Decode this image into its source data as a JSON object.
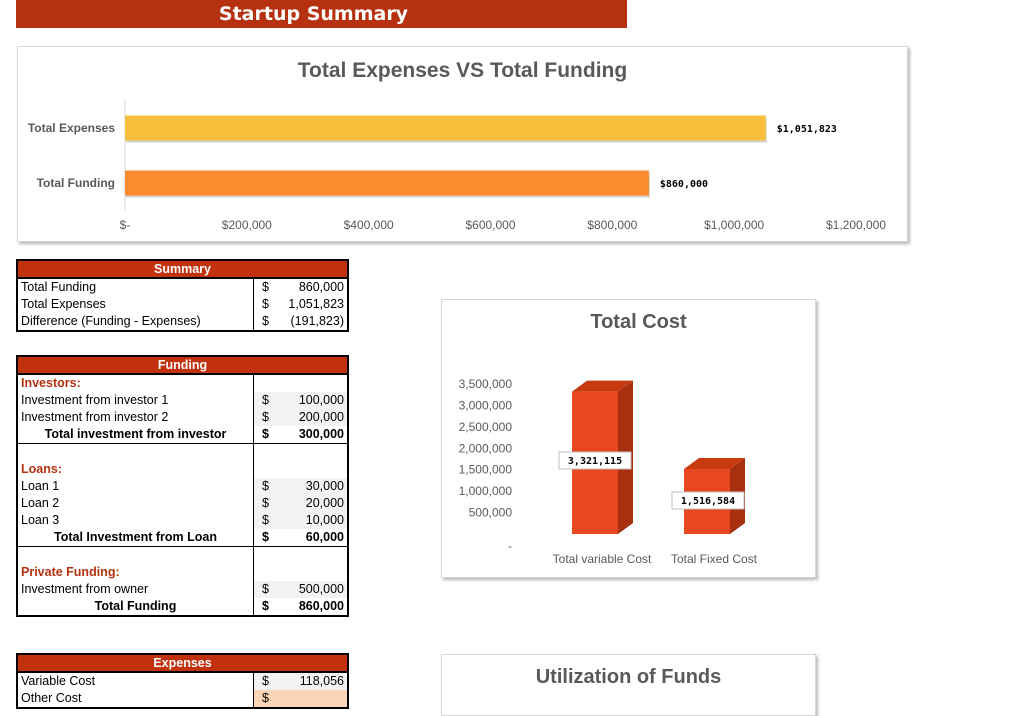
{
  "page": {
    "title": "Startup Summary"
  },
  "colors": {
    "banner": "#b5310f",
    "expenses_bar": "#f8bf3c",
    "funding_bar": "#fb8b2e",
    "cost_bar": "#e8481f"
  },
  "chart1": {
    "title": "Total Expenses VS Total Funding",
    "chart_data": {
      "type": "bar",
      "orientation": "horizontal",
      "title": "Total Expenses VS Total Funding",
      "categories": [
        "Total Expenses",
        "Total Funding"
      ],
      "values": [
        1051823,
        860000
      ],
      "data_labels": [
        "$1,051,823",
        "$860,000"
      ],
      "xlim": [
        0,
        1200000
      ],
      "ticks": [
        0,
        200000,
        400000,
        600000,
        800000,
        1000000,
        1200000
      ],
      "tick_labels": [
        "$-",
        "$200,000",
        "$400,000",
        "$600,000",
        "$800,000",
        "$1,000,000",
        "$1,200,000"
      ],
      "grid": false,
      "legend": "none"
    }
  },
  "chart2": {
    "title": "Total Cost",
    "chart_data": {
      "type": "bar",
      "style": "3d-column",
      "title": "Total Cost",
      "categories": [
        "Total variable Cost",
        "Total Fixed Cost"
      ],
      "values": [
        3321115,
        1516584
      ],
      "data_labels": [
        "3,321,115",
        "1,516,584"
      ],
      "ylim": [
        0,
        3500000
      ],
      "ticks": [
        0,
        500000,
        1000000,
        1500000,
        2000000,
        2500000,
        3000000,
        3500000
      ],
      "tick_labels": [
        "-",
        "500,000",
        "1,000,000",
        "1,500,000",
        "2,000,000",
        "2,500,000",
        "3,000,000",
        "3,500,000"
      ],
      "grid": false,
      "legend": "none"
    }
  },
  "chart3": {
    "title": "Utilization of Funds"
  },
  "summary": {
    "header": "Summary",
    "rows": [
      {
        "label": "Total Funding",
        "cur": "$",
        "value": "860,000"
      },
      {
        "label": "Total Expenses",
        "cur": "$",
        "value": "1,051,823"
      },
      {
        "label": "Difference (Funding - Expenses)",
        "cur": "$",
        "value": "(191,823)"
      }
    ]
  },
  "funding": {
    "header": "Funding",
    "investors_label": "Investors:",
    "investors": [
      {
        "label": "Investment from investor 1",
        "cur": "$",
        "value": "100,000"
      },
      {
        "label": "Investment from investor 2",
        "cur": "$",
        "value": "200,000"
      }
    ],
    "investors_total": {
      "label": "Total investment from investor",
      "cur": "$",
      "value": "300,000"
    },
    "loans_label": "Loans:",
    "loans": [
      {
        "label": "Loan 1",
        "cur": "$",
        "value": "30,000"
      },
      {
        "label": "Loan 2",
        "cur": "$",
        "value": "20,000"
      },
      {
        "label": "Loan 3",
        "cur": "$",
        "value": "10,000"
      }
    ],
    "loans_total": {
      "label": "Total Investment from Loan",
      "cur": "$",
      "value": "60,000"
    },
    "private_label": "Private Funding:",
    "private": [
      {
        "label": "Investment from owner",
        "cur": "$",
        "value": "500,000"
      }
    ],
    "funding_total": {
      "label": "Total Funding",
      "cur": "$",
      "value": "860,000"
    }
  },
  "expenses": {
    "header": "Expenses",
    "rows": [
      {
        "label": "Variable Cost",
        "cur": "$",
        "value": "118,056"
      },
      {
        "label": "Other Cost",
        "cur": "$",
        "value": ""
      }
    ]
  }
}
